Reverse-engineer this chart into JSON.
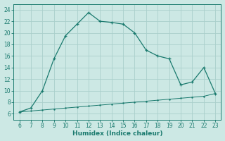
{
  "main_x": [
    6,
    7,
    8,
    9,
    10,
    11,
    12,
    13,
    14,
    15,
    16,
    17,
    18,
    19,
    20,
    21,
    22,
    23
  ],
  "main_y": [
    6.3,
    7.0,
    10.0,
    15.5,
    19.5,
    21.5,
    23.5,
    22.0,
    21.8,
    21.5,
    20.0,
    17.0,
    16.0,
    15.5,
    11.0,
    11.5,
    14.0,
    9.5
  ],
  "line2_x": [
    6,
    7,
    8,
    9,
    10,
    11,
    12,
    13,
    14,
    15,
    16,
    17,
    18,
    19,
    20,
    21,
    22,
    23
  ],
  "line2_y": [
    6.3,
    6.47,
    6.64,
    6.81,
    6.98,
    7.15,
    7.32,
    7.49,
    7.66,
    7.83,
    8.0,
    8.17,
    8.34,
    8.51,
    8.68,
    8.85,
    9.02,
    9.5
  ],
  "color_main": "#1a7a6e",
  "color_line2": "#1a7a6e",
  "bg_color": "#cce8e4",
  "grid_color": "#aacfcb",
  "xlabel": "Humidex (Indice chaleur)",
  "xlim": [
    5.5,
    23.5
  ],
  "ylim": [
    5,
    25
  ],
  "xticks": [
    6,
    7,
    8,
    9,
    10,
    11,
    12,
    13,
    14,
    15,
    16,
    17,
    18,
    19,
    20,
    21,
    22,
    23
  ],
  "yticks": [
    6,
    8,
    10,
    12,
    14,
    16,
    18,
    20,
    22,
    24
  ],
  "tick_fontsize": 5.5,
  "label_fontsize": 6.5
}
